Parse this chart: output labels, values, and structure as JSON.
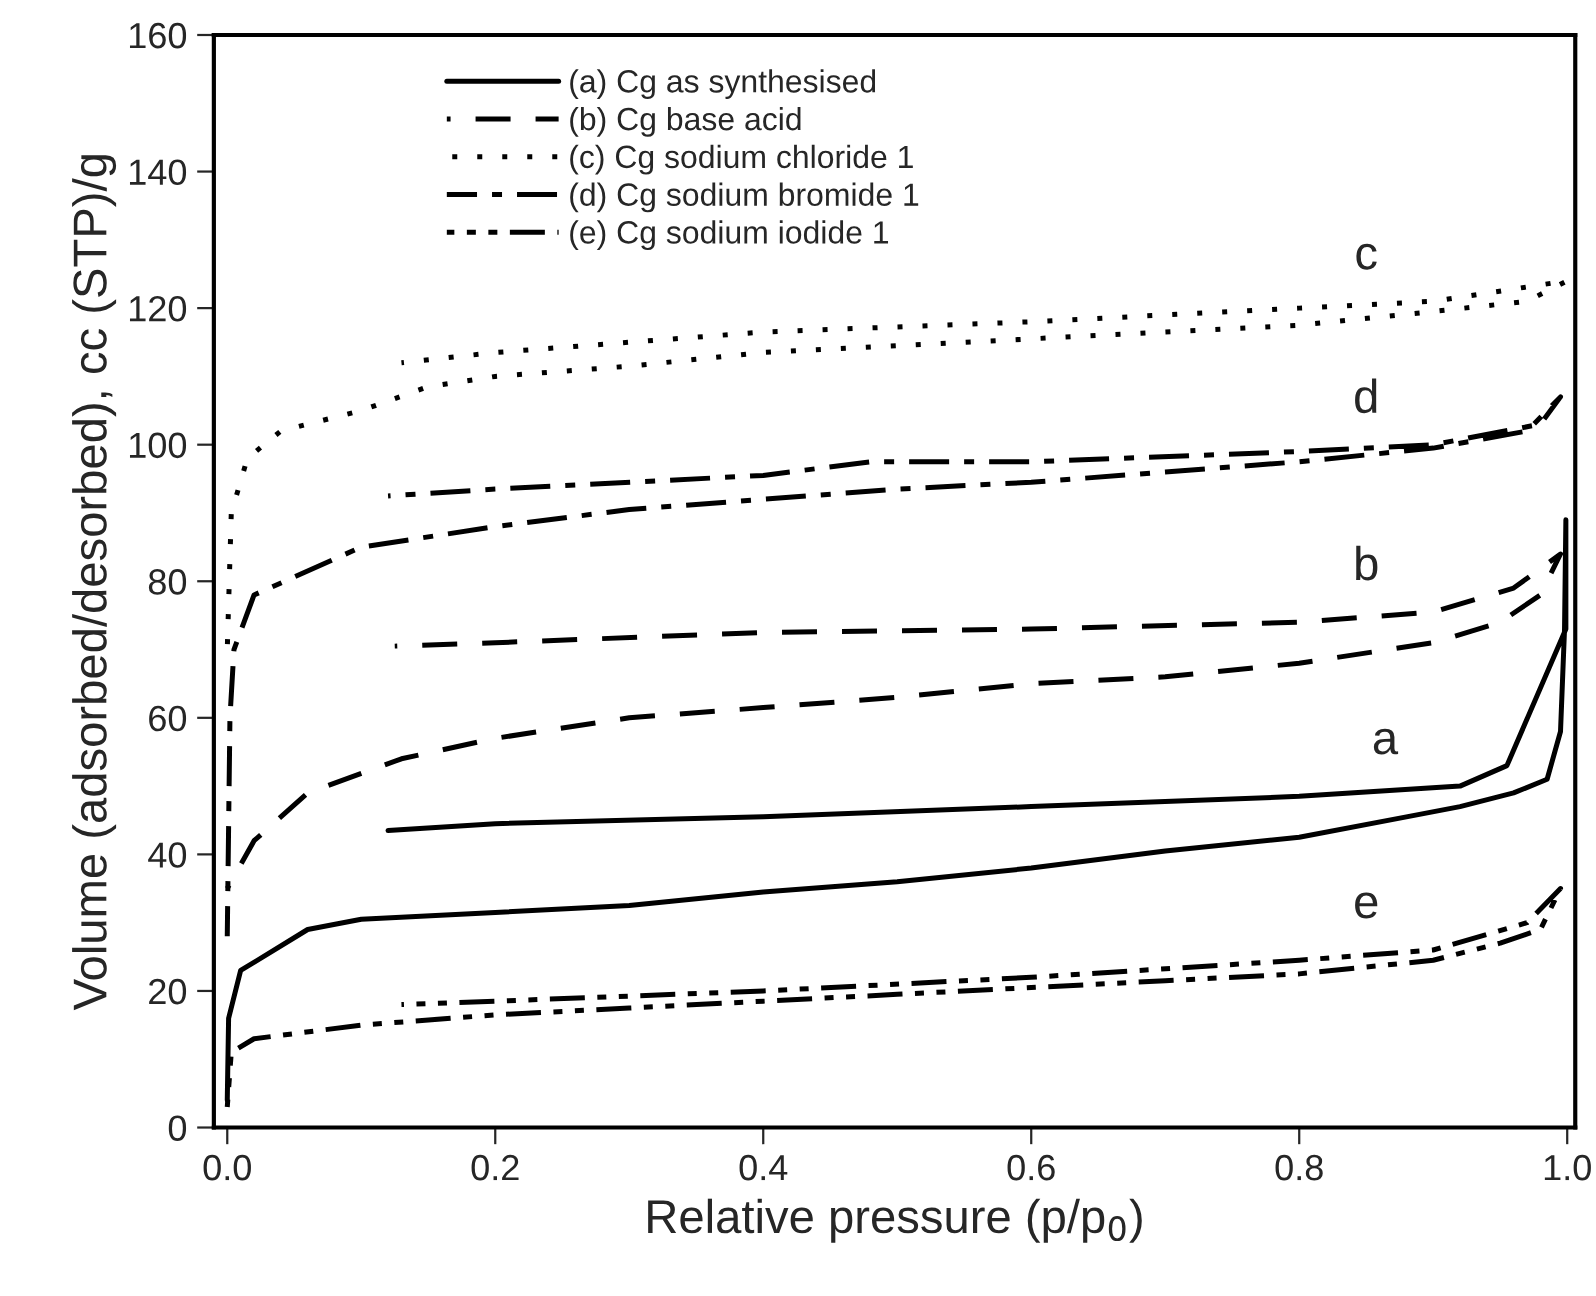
{
  "chart_data": {
    "type": "line",
    "xlabel": "Relative pressure (p/p$_{0}$)",
    "ylabel": "Volume (adsorbed/desorbed), cc (STP)/g",
    "xlim": [
      -0.01,
      1.006
    ],
    "xticks": [
      {
        "value": 0,
        "label": "0.0"
      },
      0.2,
      0.4,
      0.6,
      0.8,
      {
        "value": 1,
        "label": "1.0"
      }
    ],
    "ylim": [
      0,
      160
    ],
    "yticks": [
      0,
      20,
      40,
      60,
      80,
      100,
      120,
      140,
      160
    ],
    "grid": false,
    "legend": "top left",
    "marker": "none",
    "series": [
      {
        "name": "(a) Cg as synthesised",
        "color": "#000000",
        "line_style": "solid",
        "x": [
          0.0,
          0.001,
          0.01,
          0.06,
          0.1,
          0.2,
          0.3,
          0.4,
          0.5,
          0.6,
          0.7,
          0.8,
          0.88,
          0.92,
          0.96,
          0.985,
          0.995,
          0.998,
          0.999,
          0.999,
          0.955,
          0.92,
          0.8,
          0.6,
          0.4,
          0.2,
          0.12
        ],
        "values": [
          4,
          16,
          23,
          29,
          30.5,
          31.5,
          32.5,
          34.5,
          36,
          38,
          40.5,
          42.5,
          45.5,
          47,
          49,
          51,
          58,
          73,
          89,
          73,
          53,
          50,
          48.5,
          47,
          45.5,
          44.5,
          43.5
        ]
      },
      {
        "name": "(b) Cg base acid",
        "color": "#000000",
        "line_style": "dashed",
        "x": [
          0.0,
          0.02,
          0.06,
          0.13,
          0.2,
          0.3,
          0.4,
          0.5,
          0.6,
          0.7,
          0.8,
          0.9,
          0.95,
          0.98,
          0.995,
          0.96,
          0.9,
          0.8,
          0.6,
          0.4,
          0.2,
          0.125
        ],
        "values": [
          35,
          42,
          49,
          54,
          57,
          60,
          61.5,
          63,
          65,
          66,
          68,
          71,
          74,
          78,
          84,
          79,
          75.5,
          74,
          73,
          72.5,
          71,
          70.5
        ]
      },
      {
        "name": "(c) Cg sodium chloride 1",
        "color": "#000000",
        "line_style": "dotted",
        "x": [
          0.0,
          0.003,
          0.015,
          0.04,
          0.1,
          0.15,
          0.2,
          0.3,
          0.4,
          0.5,
          0.6,
          0.7,
          0.8,
          0.9,
          0.97,
          1.0,
          0.9,
          0.8,
          0.6,
          0.4,
          0.2,
          0.13
        ],
        "values": [
          70,
          90,
          98,
          102,
          105,
          108.5,
          110,
          111.5,
          113.5,
          114.5,
          115.5,
          116.5,
          117.5,
          119.5,
          121,
          124,
          121,
          120,
          118,
          116.5,
          113.5,
          112
        ]
      },
      {
        "name": "(d) Cg sodium bromide 1",
        "color": "#000000",
        "line_style": "dashdot",
        "x": [
          0.0,
          0.002,
          0.005,
          0.02,
          0.1,
          0.2,
          0.3,
          0.4,
          0.5,
          0.6,
          0.7,
          0.8,
          0.9,
          0.97,
          0.995,
          0.98,
          0.9,
          0.8,
          0.6,
          0.48,
          0.4,
          0.2,
          0.12
        ],
        "values": [
          28,
          60,
          70,
          78,
          85,
          88,
          90.5,
          92,
          93.5,
          94.5,
          96,
          97.5,
          99.5,
          102,
          107,
          103,
          100,
          99,
          97.5,
          97.5,
          95.5,
          93.5,
          92.5
        ]
      },
      {
        "name": "(e) Cg sodium iodide 1",
        "color": "#000000",
        "line_style": "dashdotdot",
        "x": [
          0.0,
          0.003,
          0.02,
          0.1,
          0.2,
          0.3,
          0.4,
          0.5,
          0.6,
          0.7,
          0.8,
          0.9,
          0.95,
          0.98,
          0.995,
          0.97,
          0.9,
          0.8,
          0.6,
          0.4,
          0.2,
          0.13
        ],
        "values": [
          3,
          11,
          13,
          15,
          16.5,
          17.5,
          18.5,
          19.5,
          20.5,
          21.5,
          22.5,
          24.5,
          27,
          29,
          35,
          30,
          26,
          24.5,
          22,
          20,
          18.5,
          18
        ]
      }
    ],
    "annotations": [
      "a",
      "b",
      "c",
      "d",
      "e"
    ]
  }
}
